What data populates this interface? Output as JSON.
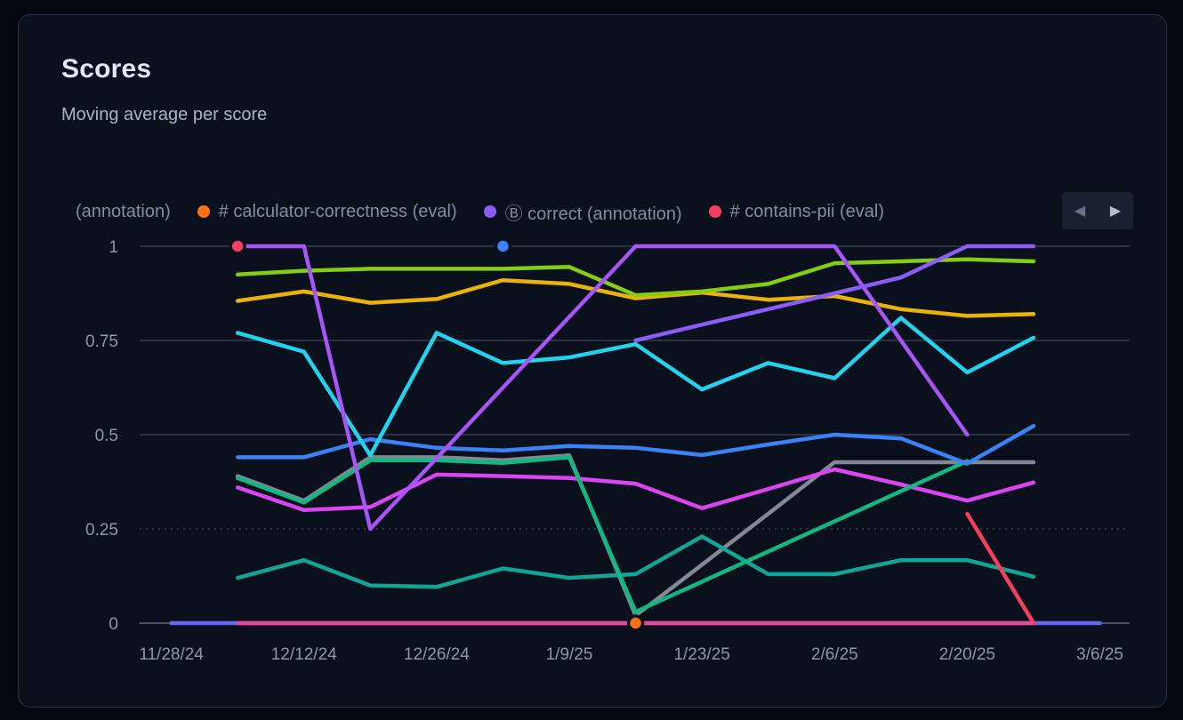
{
  "card": {
    "title": "Scores",
    "subtitle": "Moving average per score"
  },
  "legend": {
    "items": [
      {
        "label": "(annotation)",
        "color": null
      },
      {
        "label": "# calculator-correctness (eval)",
        "color": "#f97316"
      },
      {
        "label": "Ⓑ correct (annotation)",
        "color": "#8b5cf6"
      },
      {
        "label": "# contains-pii (eval)",
        "color": "#f43f5e"
      }
    ],
    "nav": {
      "prev_icon": "◀",
      "next_icon": "▶"
    }
  },
  "chart_data": {
    "type": "line",
    "title": "Scores",
    "xlabel": "",
    "ylabel": "",
    "ylim": [
      0,
      1
    ],
    "grid": true,
    "legend_position": "top",
    "x_dates": [
      "11/28/24",
      "12/5/24",
      "12/12/24",
      "12/19/24",
      "12/26/24",
      "1/2/25",
      "1/9/25",
      "1/16/25",
      "1/23/25",
      "1/30/25",
      "2/6/25",
      "2/13/25",
      "2/20/25",
      "2/27/25",
      "3/6/25"
    ],
    "x_ticks": [
      "11/28/24",
      "12/12/24",
      "12/26/24",
      "1/9/25",
      "1/23/25",
      "2/6/25",
      "2/20/25",
      "3/6/25"
    ],
    "y_ticks": [
      {
        "value": 1,
        "label": "1"
      },
      {
        "value": 0.75,
        "label": "0.75"
      },
      {
        "value": 0.5,
        "label": "0.5"
      },
      {
        "value": 0.25,
        "label": "0.25"
      },
      {
        "value": 0,
        "label": "0"
      }
    ],
    "series": [
      {
        "name": "zero-indigo",
        "color": "#6366f1",
        "start_index": 0,
        "values": [
          0,
          0,
          0,
          0,
          0,
          0,
          0,
          0,
          0,
          0,
          0,
          0,
          0,
          0,
          0
        ]
      },
      {
        "name": "zero-pink",
        "color": "#ec4899",
        "start_index": 1,
        "values": [
          0,
          0,
          0,
          0,
          0,
          0,
          0,
          0,
          0,
          0,
          0,
          0,
          0
        ]
      },
      {
        "name": "gray",
        "color": "#828894",
        "start_index": 1,
        "values": [
          0.39,
          0.325,
          0.44,
          0.44,
          0.432,
          0.445,
          0.02,
          0.155,
          0.29,
          0.427,
          0.427,
          0.427,
          0.427
        ]
      },
      {
        "name": "teal",
        "color": "#12a594",
        "start_index": 1,
        "values": [
          0.12,
          0.167,
          0.1,
          0.096,
          0.145,
          0.12,
          0.13,
          0.23,
          0.13,
          0.13,
          0.167,
          0.167,
          0.123
        ]
      },
      {
        "name": "magenta",
        "color": "#d946ef",
        "start_index": 1,
        "values": [
          0.36,
          0.3,
          0.308,
          0.394,
          0.39,
          0.385,
          0.37,
          0.305,
          0.356,
          0.408,
          0.368,
          0.325,
          0.373
        ]
      },
      {
        "name": "emerald",
        "color": "#10b981",
        "start_index": 1,
        "values": [
          0.385,
          0.32,
          0.432,
          0.432,
          0.425,
          0.44,
          0.03,
          0.11,
          0.19,
          0.27,
          0.35,
          0.43
        ]
      },
      {
        "name": "blue",
        "color": "#3b82f6",
        "start_index": 1,
        "values": [
          0.44,
          0.44,
          0.488,
          0.465,
          0.458,
          0.47,
          0.465,
          0.446,
          0.474,
          0.5,
          0.49,
          0.423,
          0.523
        ]
      },
      {
        "name": "cyan",
        "color": "#22d3ee",
        "start_index": 1,
        "values": [
          0.77,
          0.72,
          0.445,
          0.77,
          0.69,
          0.705,
          0.74,
          0.62,
          0.69,
          0.65,
          0.81,
          0.665,
          0.757
        ]
      },
      {
        "name": "amber",
        "color": "#eab308",
        "start_index": 1,
        "values": [
          0.855,
          0.88,
          0.85,
          0.86,
          0.91,
          0.9,
          0.862,
          0.877,
          0.858,
          0.868,
          0.833,
          0.815,
          0.82
        ]
      },
      {
        "name": "lime",
        "color": "#84cc16",
        "start_index": 1,
        "values": [
          0.925,
          0.935,
          0.94,
          0.94,
          0.94,
          0.945,
          0.87,
          0.88,
          0.9,
          0.955,
          0.96,
          0.965,
          0.96
        ]
      },
      {
        "name": "violet-a",
        "color": "#a855f7",
        "start_index": 1,
        "values": [
          1,
          1,
          0.25,
          0.4375,
          0.625,
          0.8125,
          1,
          1,
          1,
          1,
          0.75,
          0.5
        ]
      },
      {
        "name": "violet-b",
        "color": "#8b5cf6",
        "start_index": 7,
        "values": [
          0.75,
          0.792,
          0.833,
          0.875,
          0.917,
          1,
          1
        ]
      },
      {
        "name": "red",
        "color": "#f43f5e",
        "start_index": 12,
        "values": [
          0.29,
          0
        ]
      }
    ],
    "markers": [
      {
        "date": "12/5/24",
        "value": 1,
        "color": "#f43f5e"
      },
      {
        "date": "1/2/25",
        "value": 1,
        "color": "#3b82f6"
      },
      {
        "date": "1/16/25",
        "value": 0,
        "color": "#f97316"
      }
    ]
  }
}
